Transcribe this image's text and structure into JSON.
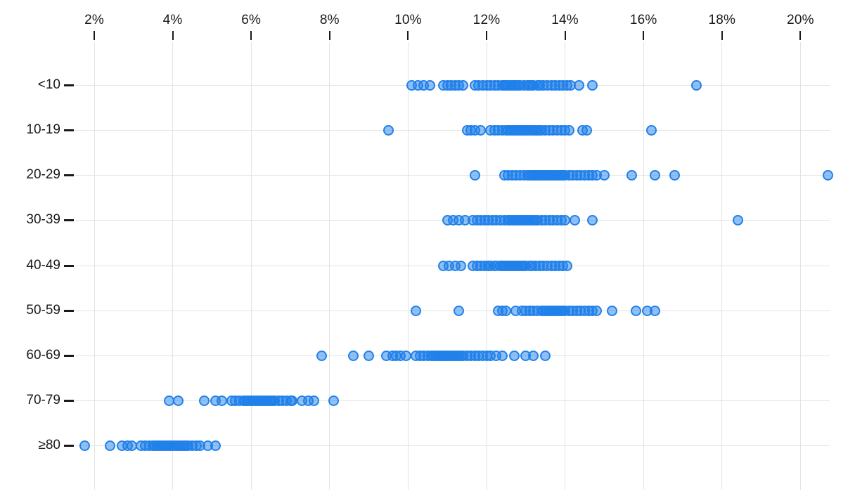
{
  "chart_data": {
    "type": "scatter",
    "subtype": "strip-plot",
    "title": "",
    "xlabel": "",
    "ylabel": "",
    "x_tick_values": [
      2,
      4,
      6,
      8,
      10,
      12,
      14,
      16,
      18,
      20
    ],
    "x_tick_labels": [
      "2%",
      "4%",
      "6%",
      "8%",
      "10%",
      "12%",
      "14%",
      "16%",
      "18%",
      "20%"
    ],
    "xlim": [
      1.4,
      21.4
    ],
    "grid": true,
    "legend": "none",
    "categories": [
      "<10",
      "10-19",
      "20-29",
      "30-39",
      "40-49",
      "50-59",
      "60-69",
      "70-79",
      "≥80"
    ],
    "series": [
      {
        "name": "<10",
        "values": [
          10.1,
          10.25,
          10.4,
          10.55,
          10.9,
          11.0,
          11.1,
          11.2,
          11.3,
          11.4,
          11.7,
          11.8,
          11.9,
          12.0,
          12.1,
          12.2,
          12.3,
          12.4,
          12.45,
          12.5,
          12.55,
          12.6,
          12.65,
          12.7,
          12.75,
          12.8,
          12.85,
          12.95,
          13.05,
          13.1,
          13.15,
          13.2,
          13.3,
          13.35,
          13.45,
          13.55,
          13.65,
          13.75,
          13.85,
          13.95,
          14.05,
          14.15,
          14.35,
          14.7,
          17.35
        ]
      },
      {
        "name": "10-19",
        "values": [
          9.5,
          11.5,
          11.6,
          11.7,
          11.85,
          12.1,
          12.2,
          12.3,
          12.4,
          12.5,
          12.55,
          12.6,
          12.65,
          12.7,
          12.75,
          12.8,
          12.85,
          12.9,
          12.95,
          13.0,
          13.05,
          13.1,
          13.15,
          13.2,
          13.25,
          13.3,
          13.35,
          13.4,
          13.5,
          13.6,
          13.7,
          13.8,
          13.9,
          14.0,
          14.1,
          14.45,
          14.55,
          16.2
        ]
      },
      {
        "name": "20-29",
        "values": [
          11.7,
          12.45,
          12.55,
          12.65,
          12.75,
          12.85,
          12.95,
          13.05,
          13.1,
          13.15,
          13.2,
          13.25,
          13.3,
          13.35,
          13.4,
          13.45,
          13.5,
          13.55,
          13.6,
          13.65,
          13.7,
          13.75,
          13.8,
          13.85,
          13.9,
          13.95,
          14.0,
          14.1,
          14.2,
          14.3,
          14.4,
          14.5,
          14.6,
          14.7,
          14.8,
          15.0,
          15.7,
          16.3,
          16.8,
          20.7
        ]
      },
      {
        "name": "30-39",
        "values": [
          11.0,
          11.15,
          11.3,
          11.45,
          11.65,
          11.75,
          11.85,
          11.95,
          12.05,
          12.15,
          12.25,
          12.35,
          12.45,
          12.55,
          12.6,
          12.65,
          12.7,
          12.75,
          12.8,
          12.85,
          12.9,
          12.95,
          13.0,
          13.05,
          13.1,
          13.15,
          13.2,
          13.25,
          13.3,
          13.4,
          13.5,
          13.6,
          13.7,
          13.8,
          13.9,
          14.0,
          14.25,
          14.7,
          18.4
        ]
      },
      {
        "name": "40-49",
        "values": [
          10.9,
          11.05,
          11.2,
          11.35,
          11.65,
          11.75,
          11.85,
          11.95,
          12.05,
          12.1,
          12.2,
          12.25,
          12.35,
          12.4,
          12.45,
          12.5,
          12.55,
          12.6,
          12.65,
          12.7,
          12.75,
          12.8,
          12.85,
          12.9,
          12.95,
          13.0,
          13.1,
          13.15,
          13.25,
          13.35,
          13.45,
          13.55,
          13.65,
          13.75,
          13.85,
          13.95,
          14.05
        ]
      },
      {
        "name": "50-59",
        "values": [
          10.2,
          11.3,
          12.3,
          12.4,
          12.5,
          12.75,
          12.9,
          13.0,
          13.1,
          13.2,
          13.3,
          13.4,
          13.45,
          13.5,
          13.55,
          13.6,
          13.65,
          13.7,
          13.75,
          13.8,
          13.85,
          13.9,
          13.95,
          14.0,
          14.1,
          14.2,
          14.3,
          14.4,
          14.5,
          14.6,
          14.7,
          14.8,
          15.2,
          15.8,
          16.1,
          16.3
        ]
      },
      {
        "name": "60-69",
        "values": [
          7.8,
          8.6,
          9.0,
          9.45,
          9.6,
          9.7,
          9.8,
          9.95,
          10.2,
          10.3,
          10.4,
          10.5,
          10.6,
          10.65,
          10.7,
          10.75,
          10.8,
          10.85,
          10.9,
          10.95,
          11.0,
          11.05,
          11.1,
          11.15,
          11.2,
          11.25,
          11.3,
          11.35,
          11.4,
          11.5,
          11.6,
          11.7,
          11.8,
          11.9,
          12.0,
          12.1,
          12.25,
          12.4,
          12.7,
          13.0,
          13.2,
          13.5
        ]
      },
      {
        "name": "70-79",
        "values": [
          3.9,
          4.15,
          4.8,
          5.1,
          5.25,
          5.5,
          5.6,
          5.7,
          5.8,
          5.85,
          5.9,
          5.95,
          6.0,
          6.05,
          6.1,
          6.15,
          6.2,
          6.25,
          6.3,
          6.35,
          6.4,
          6.45,
          6.5,
          6.55,
          6.6,
          6.7,
          6.8,
          6.9,
          7.0,
          7.05,
          7.3,
          7.45,
          7.6,
          8.1
        ]
      },
      {
        "name": "≥80",
        "values": [
          1.75,
          2.4,
          2.7,
          2.85,
          2.95,
          3.2,
          3.3,
          3.4,
          3.5,
          3.55,
          3.6,
          3.65,
          3.7,
          3.75,
          3.8,
          3.85,
          3.9,
          3.95,
          4.0,
          4.05,
          4.1,
          4.15,
          4.2,
          4.25,
          4.3,
          4.35,
          4.4,
          4.5,
          4.6,
          4.7,
          4.9,
          5.1
        ]
      }
    ],
    "colors": {
      "point_stroke": "#2181ea",
      "point_fill_rgba": "rgba(33,129,234,0.5)",
      "gridline": "#e3e3e3",
      "axis_text": "#1a1a1a",
      "background": "#ffffff"
    }
  }
}
